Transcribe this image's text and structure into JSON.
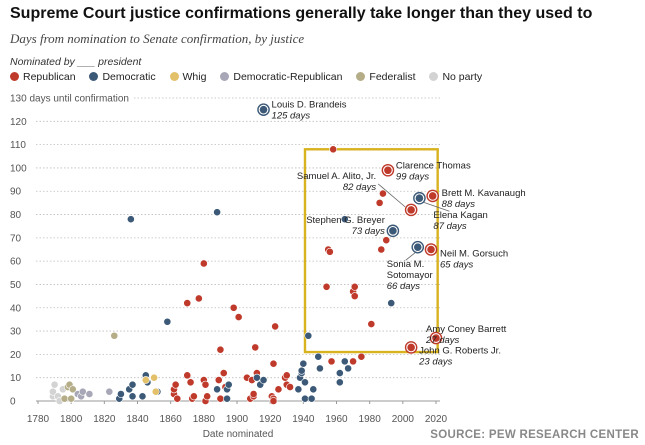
{
  "title": "Supreme Court justice confirmations generally take longer than they used to",
  "subtitle": "Days from nomination to Senate confirmation, by justice",
  "legend_title": "Nominated by ___ president",
  "source": "SOURCE: PEW RESEARCH CENTER",
  "parties": [
    {
      "key": "R",
      "name": "Republican",
      "color": "#bf3a2b"
    },
    {
      "key": "D",
      "name": "Democratic",
      "color": "#3c5a78"
    },
    {
      "key": "W",
      "name": "Whig",
      "color": "#e3c06a"
    },
    {
      "key": "DR",
      "name": "Democratic-Republican",
      "color": "#a7a7b7"
    },
    {
      "key": "F",
      "name": "Federalist",
      "color": "#b5ad88"
    },
    {
      "key": "N",
      "name": "No party",
      "color": "#d3d3d3"
    }
  ],
  "chart_data": {
    "type": "scatter",
    "xlabel": "Date nominated",
    "ylabel": "130 days until confirmation",
    "xlim": [
      1780,
      2020
    ],
    "ylim": [
      0,
      130
    ],
    "x_ticks": [
      1780,
      1800,
      1820,
      1840,
      1860,
      1880,
      1900,
      1920,
      1940,
      1960,
      1980,
      2000,
      2020
    ],
    "y_ticks": [
      0,
      10,
      20,
      30,
      40,
      50,
      60,
      70,
      80,
      90,
      100,
      110,
      120
    ],
    "grid": true,
    "highlight_box": {
      "x": [
        1941,
        2021
      ],
      "y": [
        21,
        108
      ]
    },
    "annotations": [
      {
        "name": "Louis D. Brandeis",
        "days_label": "125 days",
        "x": 1916,
        "y": 125,
        "party": "D"
      },
      {
        "name": "Clarence Thomas",
        "days_label": "99 days",
        "x": 1991,
        "y": 99,
        "party": "R"
      },
      {
        "name": "Samuel A. Alito, Jr.",
        "days_label": "82 days",
        "x": 2005,
        "y": 82,
        "party": "R"
      },
      {
        "name": "Brett M. Kavanaugh",
        "days_label": "88 days",
        "x": 2018,
        "y": 88,
        "party": "R"
      },
      {
        "name": "Elena Kagan",
        "days_label": "87 days",
        "x": 2010,
        "y": 87,
        "party": "D"
      },
      {
        "name": "Stephen G. Breyer",
        "days_label": "73 days",
        "x": 1994,
        "y": 73,
        "party": "D"
      },
      {
        "name": "Sonia M. Sotomayor",
        "days_label": "66 days",
        "x": 2009,
        "y": 66,
        "party": "D"
      },
      {
        "name": "Neil M. Gorsuch",
        "days_label": "65 days",
        "x": 2017,
        "y": 65,
        "party": "R"
      },
      {
        "name": "Amy Coney Barrett",
        "days_label": "27 days",
        "x": 2020,
        "y": 27,
        "party": "R"
      },
      {
        "name": "John G. Roberts Jr.",
        "days_label": "23 days",
        "x": 2005,
        "y": 23,
        "party": "R"
      }
    ],
    "points": [
      {
        "x": 1789,
        "y": 2,
        "party": "N"
      },
      {
        "x": 1789,
        "y": 4,
        "party": "N"
      },
      {
        "x": 1790,
        "y": 7,
        "party": "N"
      },
      {
        "x": 1792,
        "y": 2,
        "party": "N"
      },
      {
        "x": 1793,
        "y": 0,
        "party": "N"
      },
      {
        "x": 1795,
        "y": 5,
        "party": "N"
      },
      {
        "x": 1796,
        "y": 1,
        "party": "F"
      },
      {
        "x": 1798,
        "y": 6,
        "party": "F"
      },
      {
        "x": 1799,
        "y": 7,
        "party": "F"
      },
      {
        "x": 1800,
        "y": 1,
        "party": "F"
      },
      {
        "x": 1801,
        "y": 5,
        "party": "F"
      },
      {
        "x": 1804,
        "y": 3,
        "party": "DR"
      },
      {
        "x": 1806,
        "y": 2,
        "party": "DR"
      },
      {
        "x": 1807,
        "y": 4,
        "party": "DR"
      },
      {
        "x": 1811,
        "y": 3,
        "party": "DR"
      },
      {
        "x": 1823,
        "y": 4,
        "party": "DR"
      },
      {
        "x": 1826,
        "y": 28,
        "party": "F"
      },
      {
        "x": 1829,
        "y": 1,
        "party": "D"
      },
      {
        "x": 1830,
        "y": 3,
        "party": "D"
      },
      {
        "x": 1835,
        "y": 5,
        "party": "D"
      },
      {
        "x": 1836,
        "y": 78,
        "party": "D"
      },
      {
        "x": 1837,
        "y": 7,
        "party": "D"
      },
      {
        "x": 1837,
        "y": 2,
        "party": "D"
      },
      {
        "x": 1843,
        "y": 2,
        "party": "D"
      },
      {
        "x": 1845,
        "y": 11,
        "party": "D"
      },
      {
        "x": 1846,
        "y": 8,
        "party": "D"
      },
      {
        "x": 1852,
        "y": 4,
        "party": "D"
      },
      {
        "x": 1858,
        "y": 34,
        "party": "D"
      },
      {
        "x": 1845,
        "y": 9,
        "party": "W"
      },
      {
        "x": 1850,
        "y": 10,
        "party": "W"
      },
      {
        "x": 1851,
        "y": 4,
        "party": "W"
      },
      {
        "x": 1862,
        "y": 3,
        "party": "R"
      },
      {
        "x": 1862,
        "y": 5,
        "party": "R"
      },
      {
        "x": 1863,
        "y": 7,
        "party": "R"
      },
      {
        "x": 1864,
        "y": 1,
        "party": "R"
      },
      {
        "x": 1870,
        "y": 42,
        "party": "R"
      },
      {
        "x": 1870,
        "y": 11,
        "party": "R"
      },
      {
        "x": 1872,
        "y": 8,
        "party": "R"
      },
      {
        "x": 1873,
        "y": 1,
        "party": "R"
      },
      {
        "x": 1874,
        "y": 2,
        "party": "R"
      },
      {
        "x": 1877,
        "y": 44,
        "party": "R"
      },
      {
        "x": 1880,
        "y": 9,
        "party": "R"
      },
      {
        "x": 1880,
        "y": 59,
        "party": "R"
      },
      {
        "x": 1881,
        "y": 7,
        "party": "R"
      },
      {
        "x": 1881,
        "y": 0,
        "party": "R"
      },
      {
        "x": 1882,
        "y": 2,
        "party": "R"
      },
      {
        "x": 1889,
        "y": 9,
        "party": "R"
      },
      {
        "x": 1890,
        "y": 1,
        "party": "R"
      },
      {
        "x": 1890,
        "y": 22,
        "party": "R"
      },
      {
        "x": 1892,
        "y": 12,
        "party": "R"
      },
      {
        "x": 1893,
        "y": 6,
        "party": "R"
      },
      {
        "x": 1898,
        "y": 40,
        "party": "R"
      },
      {
        "x": 1901,
        "y": 36,
        "party": "R"
      },
      {
        "x": 1906,
        "y": 10,
        "party": "R"
      },
      {
        "x": 1908,
        "y": 1,
        "party": "R"
      },
      {
        "x": 1909,
        "y": 9,
        "party": "R"
      },
      {
        "x": 1910,
        "y": 2,
        "party": "R"
      },
      {
        "x": 1910,
        "y": 3,
        "party": "R"
      },
      {
        "x": 1911,
        "y": 23,
        "party": "R"
      },
      {
        "x": 1912,
        "y": 12,
        "party": "R"
      },
      {
        "x": 1921,
        "y": 2,
        "party": "R"
      },
      {
        "x": 1922,
        "y": 1,
        "party": "R"
      },
      {
        "x": 1922,
        "y": 0,
        "party": "R"
      },
      {
        "x": 1922,
        "y": 16,
        "party": "R"
      },
      {
        "x": 1923,
        "y": 32,
        "party": "R"
      },
      {
        "x": 1925,
        "y": 5,
        "party": "R"
      },
      {
        "x": 1929,
        "y": 10,
        "party": "R"
      },
      {
        "x": 1930,
        "y": 11,
        "party": "R"
      },
      {
        "x": 1930,
        "y": 7,
        "party": "R"
      },
      {
        "x": 1932,
        "y": 6,
        "party": "R"
      },
      {
        "x": 1888,
        "y": 81,
        "party": "D"
      },
      {
        "x": 1888,
        "y": 5,
        "party": "D"
      },
      {
        "x": 1894,
        "y": 5,
        "party": "D"
      },
      {
        "x": 1894,
        "y": 1,
        "party": "D"
      },
      {
        "x": 1895,
        "y": 7,
        "party": "D"
      },
      {
        "x": 1912,
        "y": 10,
        "party": "D"
      },
      {
        "x": 1914,
        "y": 7,
        "party": "D"
      },
      {
        "x": 1916,
        "y": 9,
        "party": "D"
      },
      {
        "x": 1937,
        "y": 5,
        "party": "D"
      },
      {
        "x": 1938,
        "y": 10,
        "party": "D"
      },
      {
        "x": 1939,
        "y": 12,
        "party": "D"
      },
      {
        "x": 1939,
        "y": 13,
        "party": "D"
      },
      {
        "x": 1940,
        "y": 16,
        "party": "D"
      },
      {
        "x": 1941,
        "y": 1,
        "party": "D"
      },
      {
        "x": 1941,
        "y": 8,
        "party": "D"
      },
      {
        "x": 1943,
        "y": 28,
        "party": "D"
      },
      {
        "x": 1945,
        "y": 1,
        "party": "D"
      },
      {
        "x": 1946,
        "y": 5,
        "party": "D"
      },
      {
        "x": 1949,
        "y": 19,
        "party": "D"
      },
      {
        "x": 1950,
        "y": 14,
        "party": "D"
      },
      {
        "x": 1962,
        "y": 8,
        "party": "D"
      },
      {
        "x": 1962,
        "y": 12,
        "party": "D"
      },
      {
        "x": 1965,
        "y": 17,
        "party": "D"
      },
      {
        "x": 1967,
        "y": 14,
        "party": "D"
      },
      {
        "x": 1965,
        "y": 78,
        "party": "D"
      },
      {
        "x": 1993,
        "y": 42,
        "party": "D"
      },
      {
        "x": 1954,
        "y": 49,
        "party": "R"
      },
      {
        "x": 1955,
        "y": 65,
        "party": "R"
      },
      {
        "x": 1956,
        "y": 64,
        "party": "R"
      },
      {
        "x": 1957,
        "y": 17,
        "party": "R"
      },
      {
        "x": 1958,
        "y": 108,
        "party": "R"
      },
      {
        "x": 1970,
        "y": 47,
        "party": "R"
      },
      {
        "x": 1970,
        "y": 17,
        "party": "R"
      },
      {
        "x": 1971,
        "y": 45,
        "party": "R"
      },
      {
        "x": 1971,
        "y": 49,
        "party": "R"
      },
      {
        "x": 1975,
        "y": 19,
        "party": "R"
      },
      {
        "x": 1981,
        "y": 33,
        "party": "R"
      },
      {
        "x": 1986,
        "y": 85,
        "party": "R"
      },
      {
        "x": 1987,
        "y": 65,
        "party": "R"
      },
      {
        "x": 1988,
        "y": 89,
        "party": "R"
      },
      {
        "x": 1990,
        "y": 69,
        "party": "R"
      }
    ]
  }
}
